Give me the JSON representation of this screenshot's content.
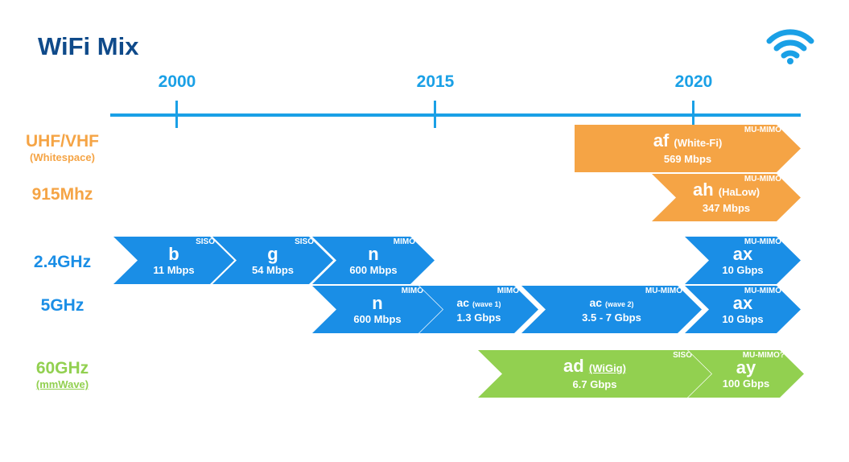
{
  "title": "WiFi Mix",
  "icon": "wifi-icon",
  "colors": {
    "title": "#0f4a8a",
    "timeline": "#1aa0e6",
    "orange": "#f5a445",
    "blue": "#1a8ee6",
    "green": "#92d050"
  },
  "timeline": {
    "years": [
      "2000",
      "2015",
      "2020"
    ]
  },
  "bands": {
    "uhf": {
      "main": "UHF/VHF",
      "sub": "(Whitespace)"
    },
    "b915": {
      "main": "915Mhz"
    },
    "b24": {
      "main": "2.4GHz"
    },
    "b5": {
      "main": "5GHz"
    },
    "b60": {
      "main": "60GHz",
      "sub": "(mmWave)"
    }
  },
  "standards": {
    "af": {
      "name": "af",
      "note": "(White-Fi)",
      "rate": "569 Mbps",
      "antenna": "MU-MIMO"
    },
    "ah": {
      "name": "ah",
      "note": "(HaLow)",
      "rate": "347 Mbps",
      "antenna": "MU-MIMO"
    },
    "b": {
      "name": "b",
      "rate": "11 Mbps",
      "antenna": "SISO"
    },
    "g": {
      "name": "g",
      "rate": "54 Mbps",
      "antenna": "SISO"
    },
    "n24": {
      "name": "n",
      "rate": "600 Mbps",
      "antenna": "MIMO"
    },
    "ax24": {
      "name": "ax",
      "rate": "10 Gbps",
      "antenna": "MU-MIMO"
    },
    "n5": {
      "name": "n",
      "rate": "600 Mbps",
      "antenna": "MIMO"
    },
    "ac1": {
      "name": "ac",
      "note": "(wave 1)",
      "rate": "1.3 Gbps",
      "antenna": "MIMO"
    },
    "ac2": {
      "name": "ac",
      "note": "(wave 2)",
      "rate": "3.5 - 7 Gbps",
      "antenna": "MU-MIMO"
    },
    "ax5": {
      "name": "ax",
      "rate": "10 Gbps",
      "antenna": "MU-MIMO"
    },
    "ad": {
      "name": "ad",
      "note": "(WiGig)",
      "rate": "6.7 Gbps",
      "antenna": "SISO"
    },
    "ay": {
      "name": "ay",
      "rate": "100 Gbps",
      "antenna": "MU-MIMO?"
    }
  }
}
